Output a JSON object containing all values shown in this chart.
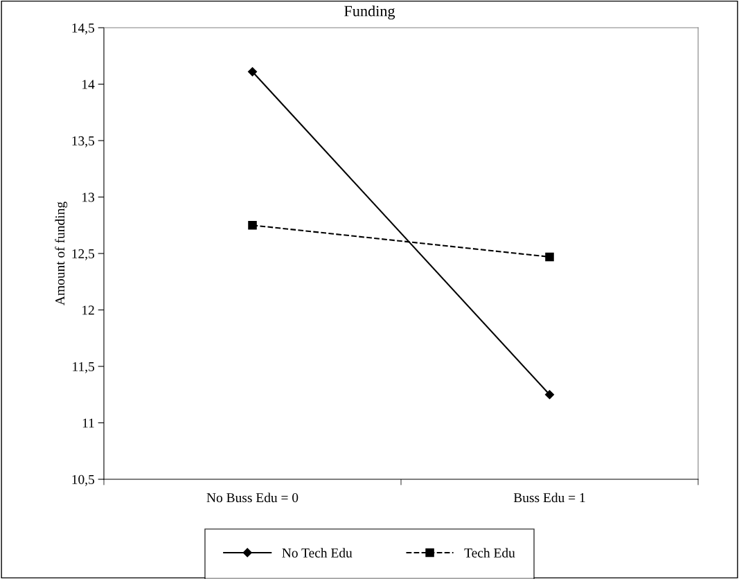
{
  "chart_data": {
    "type": "line",
    "title": "Funding",
    "ylabel": "Amount of funding",
    "categories": [
      "No Buss Edu = 0",
      "Buss Edu = 1"
    ],
    "series": [
      {
        "name": "No Tech Edu",
        "color": "#000000",
        "values": [
          14.11,
          11.25
        ],
        "marker": "diamond",
        "line_style": "solid"
      },
      {
        "name": "Tech Edu",
        "color": "#000000",
        "values": [
          12.75,
          12.47
        ],
        "marker": "square",
        "line_style": "dashed"
      }
    ],
    "ylim": [
      10.5,
      14.5
    ],
    "yticks": [
      {
        "value": 10.5,
        "label": "10,5"
      },
      11,
      {
        "value": 11.5,
        "label": "11,5"
      },
      12,
      {
        "value": 12.5,
        "label": "12,5"
      },
      13,
      {
        "value": 13.5,
        "label": "13,5"
      },
      14,
      {
        "value": 14.5,
        "label": "14,5"
      }
    ],
    "grid": false,
    "legend": "bottom"
  }
}
